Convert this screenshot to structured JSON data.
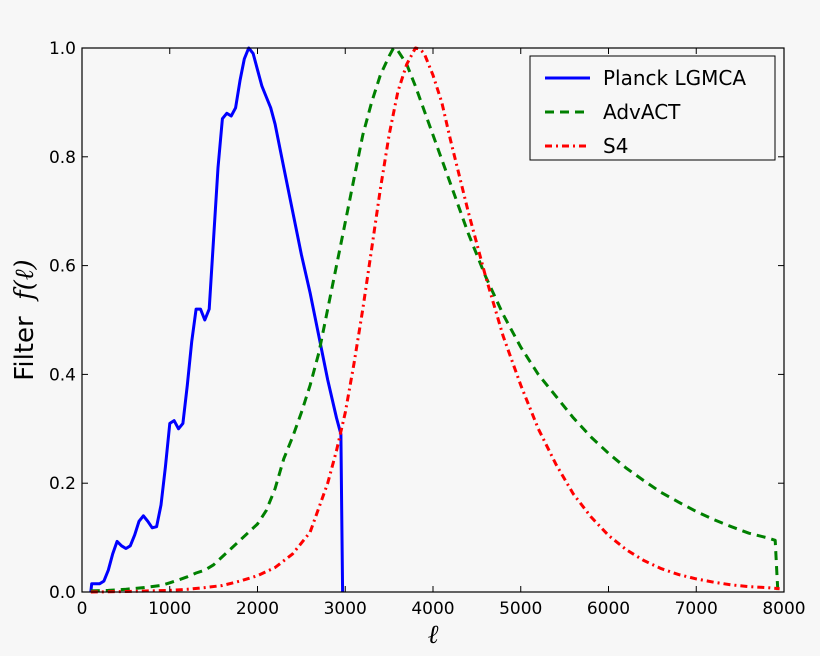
{
  "chart_data": {
    "type": "line",
    "xlabel": "ℓ",
    "ylabel_text": "Filter",
    "ylabel_math": "f(ℓ)",
    "xlim": [
      0,
      8000
    ],
    "ylim": [
      0,
      1.0
    ],
    "xticks": [
      0,
      1000,
      2000,
      3000,
      4000,
      5000,
      6000,
      7000,
      8000
    ],
    "xtick_labels": [
      "0",
      "1000",
      "2000",
      "3000",
      "4000",
      "5000",
      "6000",
      "7000",
      "8000"
    ],
    "yticks": [
      0,
      0.2,
      0.4,
      0.6,
      0.8,
      1.0
    ],
    "ytick_labels": [
      "0.0",
      "0.2",
      "0.4",
      "0.6",
      "0.8",
      "1.0"
    ],
    "grid": false,
    "legend_position": "top-right",
    "series": [
      {
        "name": "Planck LGMCA",
        "color": "#0000ff",
        "style": "solid",
        "points": [
          [
            100,
            0.0
          ],
          [
            110,
            0.015
          ],
          [
            200,
            0.015
          ],
          [
            250,
            0.02
          ],
          [
            300,
            0.04
          ],
          [
            350,
            0.07
          ],
          [
            400,
            0.093
          ],
          [
            450,
            0.085
          ],
          [
            500,
            0.08
          ],
          [
            550,
            0.085
          ],
          [
            600,
            0.105
          ],
          [
            650,
            0.13
          ],
          [
            700,
            0.14
          ],
          [
            750,
            0.13
          ],
          [
            800,
            0.118
          ],
          [
            850,
            0.12
          ],
          [
            900,
            0.16
          ],
          [
            950,
            0.23
          ],
          [
            1000,
            0.31
          ],
          [
            1050,
            0.315
          ],
          [
            1100,
            0.3
          ],
          [
            1150,
            0.31
          ],
          [
            1200,
            0.38
          ],
          [
            1250,
            0.46
          ],
          [
            1300,
            0.52
          ],
          [
            1350,
            0.52
          ],
          [
            1400,
            0.5
          ],
          [
            1450,
            0.52
          ],
          [
            1500,
            0.65
          ],
          [
            1550,
            0.78
          ],
          [
            1600,
            0.87
          ],
          [
            1650,
            0.88
          ],
          [
            1700,
            0.875
          ],
          [
            1750,
            0.89
          ],
          [
            1800,
            0.94
          ],
          [
            1850,
            0.98
          ],
          [
            1900,
            1.0
          ],
          [
            1950,
            0.99
          ],
          [
            2000,
            0.96
          ],
          [
            2050,
            0.93
          ],
          [
            2100,
            0.91
          ],
          [
            2150,
            0.89
          ],
          [
            2200,
            0.86
          ],
          [
            2300,
            0.78
          ],
          [
            2400,
            0.7
          ],
          [
            2500,
            0.62
          ],
          [
            2600,
            0.55
          ],
          [
            2700,
            0.47
          ],
          [
            2800,
            0.39
          ],
          [
            2900,
            0.32
          ],
          [
            2950,
            0.29
          ],
          [
            2960,
            0.15
          ],
          [
            2970,
            0.0
          ]
        ]
      },
      {
        "name": "AdvACT",
        "color": "#008000",
        "style": "dashed",
        "points": [
          [
            100,
            0.002
          ],
          [
            300,
            0.003
          ],
          [
            500,
            0.005
          ],
          [
            700,
            0.008
          ],
          [
            900,
            0.012
          ],
          [
            1000,
            0.017
          ],
          [
            1100,
            0.022
          ],
          [
            1200,
            0.028
          ],
          [
            1300,
            0.035
          ],
          [
            1400,
            0.04
          ],
          [
            1500,
            0.05
          ],
          [
            1600,
            0.065
          ],
          [
            1700,
            0.08
          ],
          [
            1800,
            0.095
          ],
          [
            1900,
            0.11
          ],
          [
            2000,
            0.125
          ],
          [
            2100,
            0.15
          ],
          [
            2200,
            0.19
          ],
          [
            2300,
            0.245
          ],
          [
            2400,
            0.285
          ],
          [
            2500,
            0.33
          ],
          [
            2600,
            0.38
          ],
          [
            2700,
            0.44
          ],
          [
            2800,
            0.52
          ],
          [
            2900,
            0.6
          ],
          [
            3000,
            0.68
          ],
          [
            3100,
            0.76
          ],
          [
            3200,
            0.84
          ],
          [
            3300,
            0.9
          ],
          [
            3400,
            0.95
          ],
          [
            3500,
            0.985
          ],
          [
            3550,
            1.0
          ],
          [
            3600,
            0.995
          ],
          [
            3700,
            0.97
          ],
          [
            3800,
            0.93
          ],
          [
            4000,
            0.84
          ],
          [
            4200,
            0.75
          ],
          [
            4400,
            0.66
          ],
          [
            4600,
            0.58
          ],
          [
            4800,
            0.51
          ],
          [
            5000,
            0.45
          ],
          [
            5200,
            0.4
          ],
          [
            5400,
            0.36
          ],
          [
            5600,
            0.32
          ],
          [
            5800,
            0.285
          ],
          [
            6000,
            0.255
          ],
          [
            6200,
            0.228
          ],
          [
            6400,
            0.205
          ],
          [
            6600,
            0.183
          ],
          [
            6800,
            0.165
          ],
          [
            7000,
            0.148
          ],
          [
            7200,
            0.133
          ],
          [
            7400,
            0.12
          ],
          [
            7600,
            0.108
          ],
          [
            7800,
            0.1
          ],
          [
            7900,
            0.095
          ],
          [
            7920,
            0.03
          ],
          [
            7930,
            0.0
          ]
        ]
      },
      {
        "name": "S4",
        "color": "#ff0000",
        "style": "dashdot",
        "points": [
          [
            100,
            0.0
          ],
          [
            500,
            0.001
          ],
          [
            1000,
            0.003
          ],
          [
            1200,
            0.005
          ],
          [
            1400,
            0.008
          ],
          [
            1600,
            0.012
          ],
          [
            1800,
            0.02
          ],
          [
            2000,
            0.03
          ],
          [
            2200,
            0.045
          ],
          [
            2400,
            0.07
          ],
          [
            2600,
            0.11
          ],
          [
            2800,
            0.2
          ],
          [
            2900,
            0.26
          ],
          [
            3000,
            0.33
          ],
          [
            3100,
            0.42
          ],
          [
            3200,
            0.52
          ],
          [
            3300,
            0.63
          ],
          [
            3400,
            0.74
          ],
          [
            3500,
            0.84
          ],
          [
            3600,
            0.92
          ],
          [
            3700,
            0.97
          ],
          [
            3800,
            1.0
          ],
          [
            3850,
            0.998
          ],
          [
            3900,
            0.99
          ],
          [
            4000,
            0.95
          ],
          [
            4100,
            0.9
          ],
          [
            4200,
            0.83
          ],
          [
            4400,
            0.7
          ],
          [
            4600,
            0.58
          ],
          [
            4800,
            0.47
          ],
          [
            5000,
            0.38
          ],
          [
            5200,
            0.3
          ],
          [
            5400,
            0.235
          ],
          [
            5600,
            0.18
          ],
          [
            5800,
            0.138
          ],
          [
            6000,
            0.104
          ],
          [
            6200,
            0.078
          ],
          [
            6400,
            0.058
          ],
          [
            6600,
            0.043
          ],
          [
            6800,
            0.032
          ],
          [
            7000,
            0.024
          ],
          [
            7200,
            0.018
          ],
          [
            7400,
            0.013
          ],
          [
            7600,
            0.01
          ],
          [
            7800,
            0.008
          ],
          [
            7950,
            0.006
          ]
        ]
      }
    ]
  }
}
